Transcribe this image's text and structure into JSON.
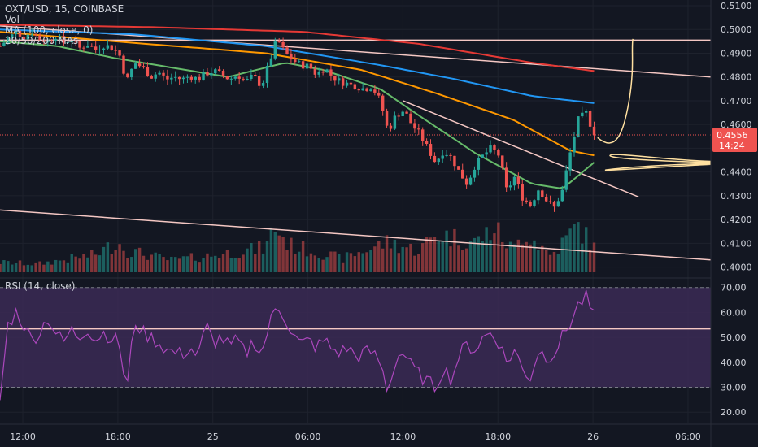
{
  "legend": {
    "symbol_line": "OXT/USD, 15, COINBASE",
    "vol_line": "Vol",
    "ma_line": "MA (100, close, 0)",
    "mas_line": "20/50/200 MAs",
    "rsi_line": "RSI (14, close)"
  },
  "price_tag": {
    "value": "0.4556",
    "countdown": "14:24",
    "color": "#ef5350"
  },
  "colors": {
    "up": "#26a69a",
    "down": "#ef5350",
    "ma20": "#66bb6a",
    "ma50": "#ff9800",
    "ma100": "#2196f3",
    "ma200": "#e53935",
    "trendline": "#f4c7c3",
    "drawing": "#ffe0a0",
    "rsi_line": "#ab47bc",
    "rsi_band": "#3b2a55",
    "background": "#131722"
  },
  "chart_data": {
    "type": "candlestick",
    "title": "OXT/USD, 15, COINBASE",
    "x_ticks": [
      {
        "label": "12:00",
        "t": 0.06
      },
      {
        "label": "18:00",
        "t": 0.31
      },
      {
        "label": "25",
        "t": 0.56
      },
      {
        "label": "06:00",
        "t": 0.81
      },
      {
        "label": "12:00",
        "t": 1.06
      },
      {
        "label": "18:00",
        "t": 1.31
      },
      {
        "label": "26",
        "t": 1.56
      },
      {
        "label": "06:00",
        "t": 1.81
      }
    ],
    "x_range_days": [
      0.0,
      1.87
    ],
    "price_axis": {
      "ticks": [
        "0.5100",
        "0.5000",
        "0.4900",
        "0.4800",
        "0.4700",
        "0.4600",
        "0.4500",
        "0.4400",
        "0.4300",
        "0.4200",
        "0.4100",
        "0.4000"
      ],
      "range": [
        0.3978,
        0.5124
      ]
    },
    "rsi_axis": {
      "ticks": [
        "70.00",
        "60.00",
        "50.00",
        "40.00",
        "30.00",
        "20.00"
      ],
      "range": [
        15.5,
        73.5
      ],
      "bands": [
        30,
        70
      ]
    },
    "price_anchors": [
      [
        0.0,
        0.493
      ],
      [
        0.021,
        0.496
      ],
      [
        0.042,
        0.499
      ],
      [
        0.063,
        0.497
      ],
      [
        0.083,
        0.499
      ],
      [
        0.104,
        0.496
      ],
      [
        0.125,
        0.495
      ],
      [
        0.146,
        0.4975
      ],
      [
        0.167,
        0.4945
      ],
      [
        0.188,
        0.496
      ],
      [
        0.208,
        0.492
      ],
      [
        0.229,
        0.494
      ],
      [
        0.25,
        0.4915
      ],
      [
        0.271,
        0.4935
      ],
      [
        0.292,
        0.4925
      ],
      [
        0.313,
        0.49
      ],
      [
        0.333,
        0.478
      ],
      [
        0.354,
        0.486
      ],
      [
        0.375,
        0.484
      ],
      [
        0.396,
        0.48
      ],
      [
        0.417,
        0.482
      ],
      [
        0.438,
        0.479
      ],
      [
        0.458,
        0.48
      ],
      [
        0.479,
        0.479
      ],
      [
        0.5,
        0.4805
      ],
      [
        0.521,
        0.479
      ],
      [
        0.542,
        0.4815
      ],
      [
        0.563,
        0.4825
      ],
      [
        0.583,
        0.481
      ],
      [
        0.604,
        0.479
      ],
      [
        0.625,
        0.481
      ],
      [
        0.646,
        0.478
      ],
      [
        0.667,
        0.4805
      ],
      [
        0.688,
        0.476
      ],
      [
        0.708,
        0.486
      ],
      [
        0.729,
        0.496
      ],
      [
        0.75,
        0.49
      ],
      [
        0.771,
        0.487
      ],
      [
        0.792,
        0.485
      ],
      [
        0.813,
        0.4845
      ],
      [
        0.833,
        0.481
      ],
      [
        0.854,
        0.484
      ],
      [
        0.875,
        0.48
      ],
      [
        0.896,
        0.478
      ],
      [
        0.917,
        0.477
      ],
      [
        0.938,
        0.476
      ],
      [
        0.958,
        0.475
      ],
      [
        0.979,
        0.476
      ],
      [
        1.0,
        0.47
      ],
      [
        1.021,
        0.457
      ],
      [
        1.042,
        0.464
      ],
      [
        1.063,
        0.466
      ],
      [
        1.083,
        0.46
      ],
      [
        1.104,
        0.456
      ],
      [
        1.125,
        0.45
      ],
      [
        1.146,
        0.444
      ],
      [
        1.167,
        0.449
      ],
      [
        1.188,
        0.446
      ],
      [
        1.208,
        0.44
      ],
      [
        1.229,
        0.435
      ],
      [
        1.25,
        0.443
      ],
      [
        1.271,
        0.447
      ],
      [
        1.292,
        0.45
      ],
      [
        1.313,
        0.447
      ],
      [
        1.333,
        0.432
      ],
      [
        1.354,
        0.438
      ],
      [
        1.375,
        0.429
      ],
      [
        1.396,
        0.426
      ],
      [
        1.417,
        0.433
      ],
      [
        1.438,
        0.428
      ],
      [
        1.458,
        0.425
      ],
      [
        1.479,
        0.432
      ],
      [
        1.5,
        0.448
      ],
      [
        1.521,
        0.462
      ],
      [
        1.542,
        0.465
      ],
      [
        1.563,
        0.4556
      ]
    ],
    "rsi_anchors": [
      [
        0.0,
        25
      ],
      [
        0.021,
        55
      ],
      [
        0.042,
        60
      ],
      [
        0.063,
        55
      ],
      [
        0.083,
        49
      ],
      [
        0.104,
        52
      ],
      [
        0.125,
        58
      ],
      [
        0.146,
        52
      ],
      [
        0.167,
        48
      ],
      [
        0.188,
        53
      ],
      [
        0.208,
        50
      ],
      [
        0.229,
        54
      ],
      [
        0.25,
        49
      ],
      [
        0.271,
        52
      ],
      [
        0.292,
        50
      ],
      [
        0.313,
        48
      ],
      [
        0.333,
        28
      ],
      [
        0.354,
        57
      ],
      [
        0.375,
        52
      ],
      [
        0.396,
        50
      ],
      [
        0.417,
        48
      ],
      [
        0.438,
        45
      ],
      [
        0.458,
        44
      ],
      [
        0.479,
        43
      ],
      [
        0.5,
        46
      ],
      [
        0.521,
        42
      ],
      [
        0.542,
        55
      ],
      [
        0.563,
        48
      ],
      [
        0.583,
        50
      ],
      [
        0.604,
        46
      ],
      [
        0.625,
        49
      ],
      [
        0.646,
        43
      ],
      [
        0.667,
        49
      ],
      [
        0.688,
        43
      ],
      [
        0.708,
        55
      ],
      [
        0.729,
        63
      ],
      [
        0.75,
        58
      ],
      [
        0.771,
        51
      ],
      [
        0.792,
        47
      ],
      [
        0.813,
        49
      ],
      [
        0.833,
        46
      ],
      [
        0.854,
        49
      ],
      [
        0.875,
        45
      ],
      [
        0.896,
        44
      ],
      [
        0.917,
        46
      ],
      [
        0.938,
        42
      ],
      [
        0.958,
        44
      ],
      [
        0.979,
        44
      ],
      [
        1.0,
        40
      ],
      [
        1.021,
        28
      ],
      [
        1.042,
        42
      ],
      [
        1.063,
        44
      ],
      [
        1.083,
        38
      ],
      [
        1.104,
        35
      ],
      [
        1.125,
        32
      ],
      [
        1.146,
        30
      ],
      [
        1.167,
        38
      ],
      [
        1.188,
        33
      ],
      [
        1.208,
        43
      ],
      [
        1.229,
        47
      ],
      [
        1.25,
        45
      ],
      [
        1.271,
        50
      ],
      [
        1.292,
        52
      ],
      [
        1.313,
        48
      ],
      [
        1.333,
        40
      ],
      [
        1.354,
        45
      ],
      [
        1.375,
        37
      ],
      [
        1.396,
        34
      ],
      [
        1.417,
        45
      ],
      [
        1.438,
        42
      ],
      [
        1.458,
        44
      ],
      [
        1.479,
        50
      ],
      [
        1.5,
        56
      ],
      [
        1.521,
        63
      ],
      [
        1.542,
        66
      ],
      [
        1.563,
        58
      ]
    ],
    "volume_anchors": [
      [
        0.0,
        0.18
      ],
      [
        0.1,
        0.15
      ],
      [
        0.25,
        0.32
      ],
      [
        0.31,
        0.55
      ],
      [
        0.333,
        0.4
      ],
      [
        0.45,
        0.22
      ],
      [
        0.55,
        0.3
      ],
      [
        0.7,
        0.45
      ],
      [
        0.72,
        0.85
      ],
      [
        0.76,
        0.5
      ],
      [
        0.9,
        0.25
      ],
      [
        1.02,
        0.55
      ],
      [
        1.1,
        0.4
      ],
      [
        1.15,
        0.7
      ],
      [
        1.25,
        0.55
      ],
      [
        1.3,
        0.8
      ],
      [
        1.35,
        0.4
      ],
      [
        1.38,
        0.75
      ],
      [
        1.45,
        0.3
      ],
      [
        1.52,
        0.85
      ],
      [
        1.563,
        0.45
      ]
    ],
    "moving_averages": [
      {
        "period": 20,
        "color_key": "ma20"
      },
      {
        "period": 50,
        "color_key": "ma50"
      },
      {
        "period": 100,
        "color_key": "ma100"
      },
      {
        "period": 200,
        "color_key": "ma200"
      }
    ],
    "ma_anchors": {
      "ma200": [
        [
          0.0,
          0.502
        ],
        [
          0.4,
          0.501
        ],
        [
          0.8,
          0.499
        ],
        [
          1.1,
          0.494
        ],
        [
          1.4,
          0.486
        ],
        [
          1.563,
          0.4825
        ]
      ],
      "ma100": [
        [
          0.0,
          0.5
        ],
        [
          0.35,
          0.498
        ],
        [
          0.7,
          0.493
        ],
        [
          1.0,
          0.485
        ],
        [
          1.2,
          0.479
        ],
        [
          1.4,
          0.472
        ],
        [
          1.563,
          0.469
        ]
      ],
      "ma50": [
        [
          0.0,
          0.499
        ],
        [
          0.3,
          0.495
        ],
        [
          0.7,
          0.49
        ],
        [
          0.95,
          0.483
        ],
        [
          1.15,
          0.473
        ],
        [
          1.35,
          0.462
        ],
        [
          1.5,
          0.449
        ],
        [
          1.563,
          0.447
        ]
      ],
      "ma20": [
        [
          0.0,
          0.495
        ],
        [
          0.15,
          0.493
        ],
        [
          0.3,
          0.488
        ],
        [
          0.45,
          0.484
        ],
        [
          0.6,
          0.48
        ],
        [
          0.75,
          0.486
        ],
        [
          0.85,
          0.483
        ],
        [
          1.0,
          0.475
        ],
        [
          1.1,
          0.464
        ],
        [
          1.25,
          0.448
        ],
        [
          1.4,
          0.435
        ],
        [
          1.48,
          0.433
        ],
        [
          1.563,
          0.444
        ]
      ]
    },
    "trendlines": [
      {
        "from": [
          0.0,
          0.5015
        ],
        "to": [
          1.87,
          0.48
        ]
      },
      {
        "from": [
          1.06,
          0.47
        ],
        "to": [
          1.68,
          0.4295
        ]
      },
      {
        "from": [
          0.0,
          0.424
        ],
        "to": [
          1.87,
          0.403
        ]
      }
    ],
    "horizontal_lines": [
      {
        "price": 0.4955
      }
    ],
    "rsi_horizontal_lines": [
      {
        "value": 53.5
      }
    ],
    "last_price": 0.4556
  }
}
